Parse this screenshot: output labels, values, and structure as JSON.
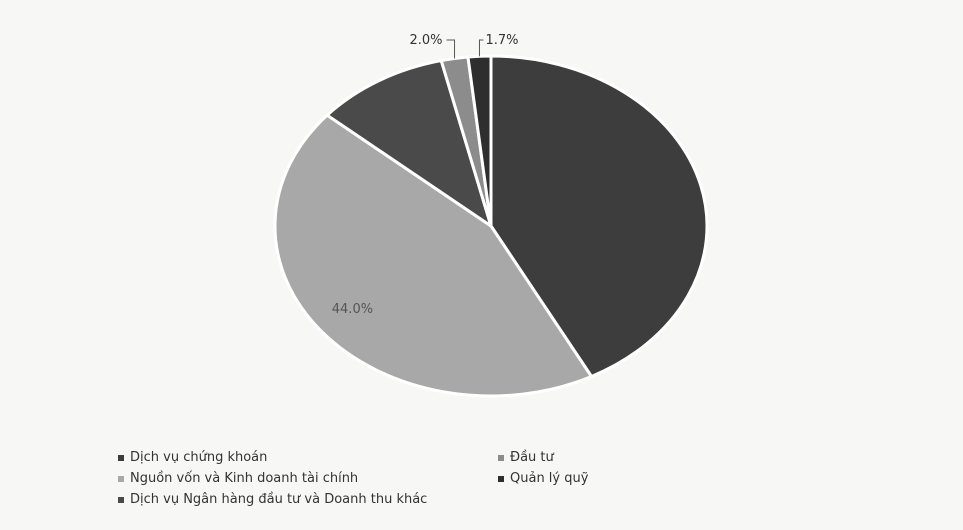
{
  "chart_data": {
    "type": "pie",
    "slices": [
      {
        "label": "Dịch vụ chứng khoán",
        "value": 42.3,
        "value_label": "",
        "color": "#3d3d3d"
      },
      {
        "label": "Nguồn vốn và Kinh doanh tài chính",
        "value": 44.0,
        "value_label": "44.0%",
        "color": "#a8a8a8"
      },
      {
        "label": "Dịch vụ Ngân hàng đầu tư và Doanh thu khác",
        "value": 10.0,
        "value_label": "",
        "color": "#4a4a4a"
      },
      {
        "label": "Đầu tư",
        "value": 2.0,
        "value_label": "2.0%",
        "color": "#8c8c8c"
      },
      {
        "label": "Quản lý quỹ",
        "value": 1.7,
        "value_label": "1.7%",
        "color": "#2e2e2e"
      }
    ],
    "legend_placement": "bottom",
    "legend_order": [
      0,
      3,
      1,
      4,
      2
    ]
  }
}
